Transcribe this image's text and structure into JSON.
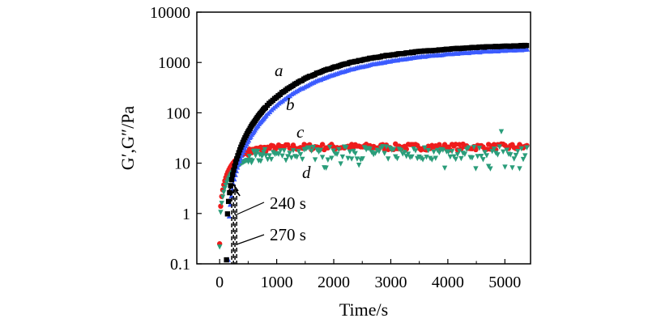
{
  "chart_data": {
    "type": "scatter",
    "title": "",
    "xlabel": "Time/s",
    "ylabel": "G′,G″/Pa",
    "x_scale": "linear",
    "y_scale": "log",
    "xlim": [
      -400,
      5450
    ],
    "ylim": [
      0.1,
      10000
    ],
    "x_ticks": [
      0,
      1000,
      2000,
      3000,
      4000,
      5000
    ],
    "x_tick_labels": [
      "0",
      "1000",
      "2000",
      "3000",
      "4000",
      "5000"
    ],
    "y_ticks": [
      0.1,
      1,
      10,
      100,
      1000,
      10000
    ],
    "y_tick_labels": [
      "0.1",
      "1",
      "10",
      "100",
      "1000",
      "10000"
    ],
    "grid": false,
    "series": [
      {
        "name": "a",
        "label": "a",
        "color": "#000000",
        "marker": "square",
        "model": {
          "kind": "growth",
          "onset": 120,
          "plateau": 2400,
          "tau": 1500,
          "power": 1.0,
          "start": 0.12
        },
        "x_range": [
          120,
          5400
        ]
      },
      {
        "name": "b",
        "label": "b",
        "color": "#3b5bff",
        "marker": "triangle-up",
        "model": {
          "kind": "growth",
          "onset": 150,
          "plateau": 2100,
          "tau": 1700,
          "power": 1.0,
          "start": 0.12
        },
        "x_range": [
          150,
          5400
        ]
      },
      {
        "name": "c",
        "label": "c",
        "color": "#ee1c1c",
        "marker": "circle",
        "model": {
          "kind": "growth",
          "onset": 0,
          "plateau": 21,
          "tau": 260,
          "power": 1.0,
          "start": 0.25
        },
        "x_range": [
          0,
          5400
        ],
        "noise": 0.1
      },
      {
        "name": "d",
        "label": "d",
        "color": "#2a9d7a",
        "marker": "triangle-down",
        "model": {
          "kind": "growth",
          "onset": 0,
          "plateau": 16,
          "tau": 300,
          "power": 1.0,
          "start": 0.22
        },
        "x_range": [
          0,
          5400
        ],
        "noise": 0.22
      }
    ],
    "annotations": [
      {
        "text": "240 s",
        "x": 240
      },
      {
        "text": "270 s",
        "x": 270
      }
    ]
  }
}
